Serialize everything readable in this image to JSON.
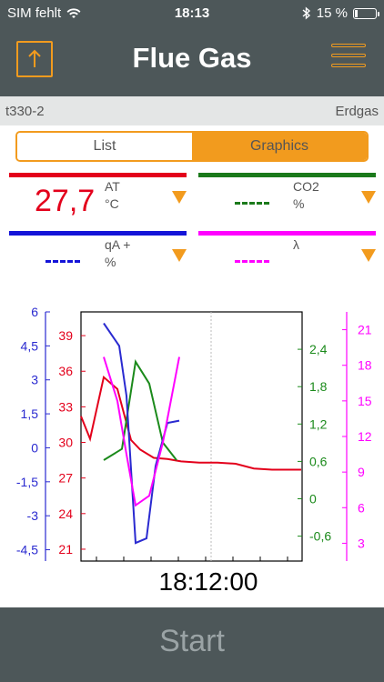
{
  "status_bar": {
    "carrier": "SIM fehlt",
    "time": "18:13",
    "battery_text": "15 %",
    "battery_level": 0.15
  },
  "nav": {
    "title": "Flue Gas",
    "share_icon": "share-icon",
    "menu_icon": "hamburger-menu-icon",
    "accent": "#f29b1e"
  },
  "info": {
    "device": "t330-2",
    "fuel": "Erdgas"
  },
  "segmented": {
    "list_label": "List",
    "graphics_label": "Graphics",
    "selected": "Graphics"
  },
  "tiles": [
    {
      "name": "AT",
      "unit": "°C",
      "value": "27,7",
      "color": "#e3001b"
    },
    {
      "name": "CO2",
      "unit": "%",
      "value": "",
      "color": "#1b7a1b"
    },
    {
      "name": "qA +",
      "unit": "%",
      "value": "",
      "color": "#1414d8"
    },
    {
      "name": "λ",
      "unit": "",
      "value": "",
      "color": "#ff00ff"
    }
  ],
  "start_button": {
    "label": "Start"
  },
  "chart_data": {
    "type": "line",
    "time_label": "18:12:00",
    "axes": {
      "blue": {
        "ticks": [
          "6",
          "4,5",
          "3",
          "1,5",
          "0",
          "-1,5",
          "-3",
          "-4,5"
        ],
        "color": "#2a2ad0",
        "ylim": [
          -5,
          6
        ]
      },
      "red": {
        "ticks": [
          "39",
          "36",
          "33",
          "30",
          "27",
          "24",
          "21"
        ],
        "color": "#e3001b",
        "ylim": [
          20,
          41
        ]
      },
      "green": {
        "ticks": [
          "2,4",
          "1,8",
          "1,2",
          "0,6",
          "0",
          "-0,6"
        ],
        "color": "#1b8a1b",
        "ylim": [
          -1.0,
          3.0
        ]
      },
      "magenta": {
        "ticks": [
          "21",
          "18",
          "15",
          "12",
          "9",
          "6",
          "3"
        ],
        "color": "#ff00ff",
        "ylim": [
          1.5,
          22.5
        ]
      }
    },
    "series": [
      {
        "name": "AT",
        "axis": "red",
        "color": "#e3001b",
        "x": [
          0,
          10,
          25,
          40,
          55,
          65,
          80,
          95,
          110,
          130,
          150,
          170,
          190,
          210,
          225,
          242
        ],
        "y": [
          32.2,
          30.3,
          35.5,
          34.5,
          30.2,
          29.4,
          28.7,
          28.6,
          28.4,
          28.3,
          28.3,
          28.2,
          27.8,
          27.7,
          27.7,
          27.7
        ]
      },
      {
        "name": "CO2",
        "axis": "green",
        "color": "#1b8a1b",
        "x": [
          25,
          45,
          60,
          75,
          90,
          105
        ],
        "y": [
          0.62,
          0.8,
          2.2,
          1.85,
          0.9,
          0.62
        ]
      },
      {
        "name": "qA +",
        "axis": "blue",
        "color": "#2a2ad0",
        "x": [
          25,
          42,
          50,
          60,
          72,
          82,
          95,
          108
        ],
        "y": [
          5.5,
          4.5,
          2.3,
          -4.2,
          -4.0,
          -0.8,
          1.1,
          1.2
        ]
      },
      {
        "name": "λ",
        "axis": "magenta",
        "color": "#ff00ff",
        "x": [
          25,
          40,
          50,
          60,
          75,
          90,
          108
        ],
        "y": [
          18.7,
          15.0,
          10.5,
          6.2,
          7.0,
          11.5,
          18.7
        ]
      }
    ]
  }
}
